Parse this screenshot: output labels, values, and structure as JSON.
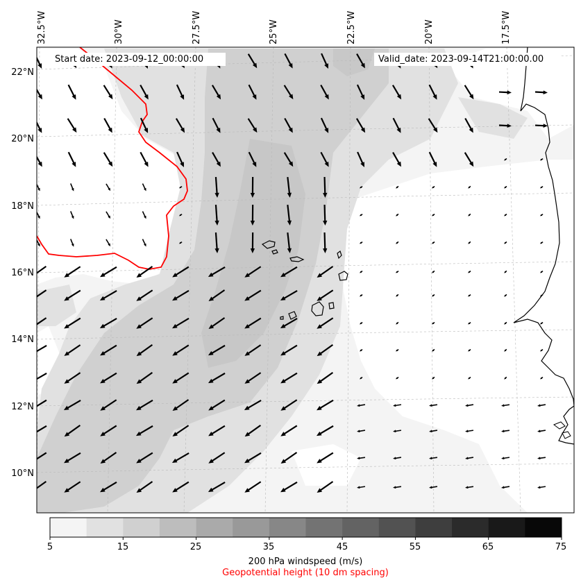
{
  "map": {
    "header": {
      "start_date": "Start date: 2023-09-12_00:00:00",
      "valid_date": "Valid_date: 2023-09-14T21:00:00.00"
    },
    "lon_labels": [
      "32.5°W",
      "30°W",
      "27.5°W",
      "25°W",
      "22.5°W",
      "20°W",
      "17.5°W"
    ],
    "lat_labels": [
      "22°N",
      "20°N",
      "18°N",
      "16°N",
      "14°N",
      "12°N",
      "10°N"
    ],
    "colorbar": {
      "ticks": [
        "5",
        "15",
        "25",
        "35",
        "45",
        "55",
        "65",
        "75"
      ],
      "colors": [
        "#f4f4f4",
        "#e1e1e1",
        "#d0d0d0",
        "#bdbdbd",
        "#aaaaaa",
        "#999999",
        "#878787",
        "#737373",
        "#636363",
        "#525252",
        "#3e3e3e",
        "#2b2b2b",
        "#191919",
        "#080808"
      ],
      "label": "200 hPa windspeed (m/s)",
      "sublabel": "Geopotential height (10 dm spacing)"
    },
    "colors": {
      "contour": "#ff0000",
      "coast": "#000000",
      "arrow": "#000000"
    }
  }
}
